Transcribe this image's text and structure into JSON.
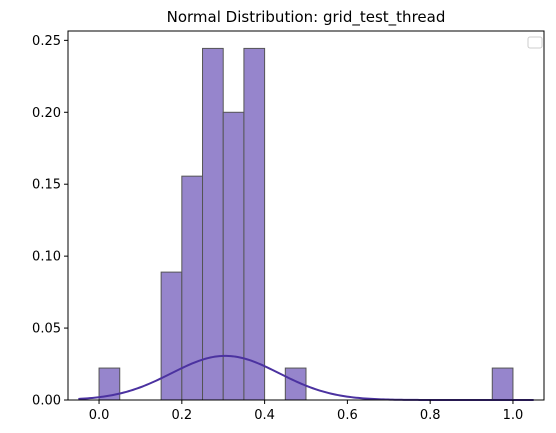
{
  "chart_data": {
    "type": "bar",
    "title": "Normal Distribution: grid_test_thread",
    "xlabel": "",
    "ylabel": "",
    "xlim": [
      -0.075,
      1.075
    ],
    "ylim": [
      0,
      0.2565
    ],
    "x_ticks": [
      {
        "value": 0.0,
        "label": "0.0"
      },
      {
        "value": 0.2,
        "label": "0.2"
      },
      {
        "value": 0.4,
        "label": "0.4"
      },
      {
        "value": 0.6,
        "label": "0.6"
      },
      {
        "value": 0.8,
        "label": "0.8"
      },
      {
        "value": 1.0,
        "label": "1.0"
      }
    ],
    "y_ticks": [
      {
        "value": 0.0,
        "label": "0.00"
      },
      {
        "value": 0.05,
        "label": "0.05"
      },
      {
        "value": 0.1,
        "label": "0.10"
      },
      {
        "value": 0.15,
        "label": "0.15"
      },
      {
        "value": 0.2,
        "label": "0.20"
      },
      {
        "value": 0.25,
        "label": "0.25"
      }
    ],
    "histogram": {
      "bin_edges": [
        0.0,
        0.05,
        0.1,
        0.15,
        0.2,
        0.25,
        0.3,
        0.35,
        0.4,
        0.45,
        0.5,
        0.55,
        0.6,
        0.65,
        0.7,
        0.75,
        0.8,
        0.85,
        0.9,
        0.95,
        1.0
      ],
      "values": [
        0.0222,
        0,
        0,
        0.0889,
        0.1556,
        0.2444,
        0.2,
        0.2444,
        0,
        0.0222,
        0,
        0,
        0,
        0,
        0,
        0,
        0,
        0,
        0,
        0.0222
      ],
      "fill_color": "#9685cc",
      "edge_color": "#555555"
    },
    "curve": {
      "type": "normal-pdf",
      "x_range": [
        -0.05,
        1.05
      ],
      "mean": 0.305,
      "std": 0.13,
      "scale": 0.01,
      "color": "#4b32a0"
    },
    "legend": {
      "placement": "top-right",
      "entries": []
    },
    "grid": false
  }
}
